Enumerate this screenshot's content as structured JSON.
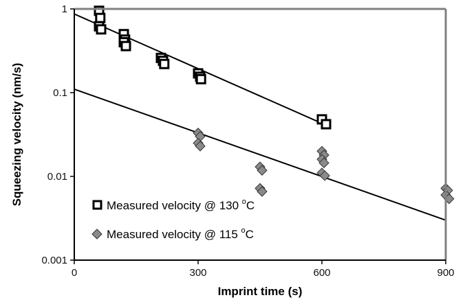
{
  "chart_data": {
    "type": "scatter",
    "xlabel": "Imprint time (s)",
    "ylabel": "Squeezing velocity (nm/s)",
    "x_scale": "linear",
    "y_scale": "log",
    "xlim": [
      0,
      900
    ],
    "ylim": [
      0.001,
      1
    ],
    "x_ticks": [
      0,
      300,
      600,
      900
    ],
    "x_tick_labels": [
      "0",
      "300",
      "600",
      "900"
    ],
    "y_ticks": [
      0.001,
      0.01,
      0.1,
      1
    ],
    "y_tick_labels": [
      "0.001",
      "0.01",
      "0.1",
      "1"
    ],
    "grid": false,
    "legend_position": "bottom-left",
    "series": [
      {
        "name": "Measured velocity @ 130 °C",
        "marker": "open-square",
        "color": "#000000",
        "points": [
          {
            "x": 60,
            "y": 0.95
          },
          {
            "x": 63,
            "y": 0.78
          },
          {
            "x": 60,
            "y": 0.62
          },
          {
            "x": 65,
            "y": 0.57
          },
          {
            "x": 120,
            "y": 0.5
          },
          {
            "x": 123,
            "y": 0.43
          },
          {
            "x": 120,
            "y": 0.4
          },
          {
            "x": 125,
            "y": 0.36
          },
          {
            "x": 210,
            "y": 0.26
          },
          {
            "x": 215,
            "y": 0.24
          },
          {
            "x": 218,
            "y": 0.22
          },
          {
            "x": 300,
            "y": 0.17
          },
          {
            "x": 305,
            "y": 0.155
          },
          {
            "x": 307,
            "y": 0.145
          },
          {
            "x": 600,
            "y": 0.048
          },
          {
            "x": 610,
            "y": 0.042
          }
        ],
        "fit_line": {
          "x": [
            0,
            600
          ],
          "y": [
            0.87,
            0.043
          ]
        }
      },
      {
        "name": "Measured velocity @ 115 °C",
        "marker": "diamond",
        "color": "#777777",
        "points": [
          {
            "x": 300,
            "y": 0.033
          },
          {
            "x": 305,
            "y": 0.03
          },
          {
            "x": 300,
            "y": 0.025
          },
          {
            "x": 305,
            "y": 0.023
          },
          {
            "x": 450,
            "y": 0.013
          },
          {
            "x": 455,
            "y": 0.0118
          },
          {
            "x": 450,
            "y": 0.0072
          },
          {
            "x": 455,
            "y": 0.0066
          },
          {
            "x": 600,
            "y": 0.02
          },
          {
            "x": 605,
            "y": 0.018
          },
          {
            "x": 600,
            "y": 0.016
          },
          {
            "x": 605,
            "y": 0.0145
          },
          {
            "x": 600,
            "y": 0.011
          },
          {
            "x": 607,
            "y": 0.0102
          },
          {
            "x": 900,
            "y": 0.0072
          },
          {
            "x": 905,
            "y": 0.0068
          },
          {
            "x": 900,
            "y": 0.006
          },
          {
            "x": 908,
            "y": 0.0054
          }
        ],
        "fit_line": {
          "x": [
            0,
            900
          ],
          "y": [
            0.11,
            0.003
          ]
        }
      }
    ]
  },
  "legend": {
    "items": [
      {
        "prefix": "Measured velocity @ 130 ",
        "unit": "C"
      },
      {
        "prefix": "Measured velocity @ 115 ",
        "unit": "C"
      }
    ],
    "degree_symbol": "o"
  }
}
